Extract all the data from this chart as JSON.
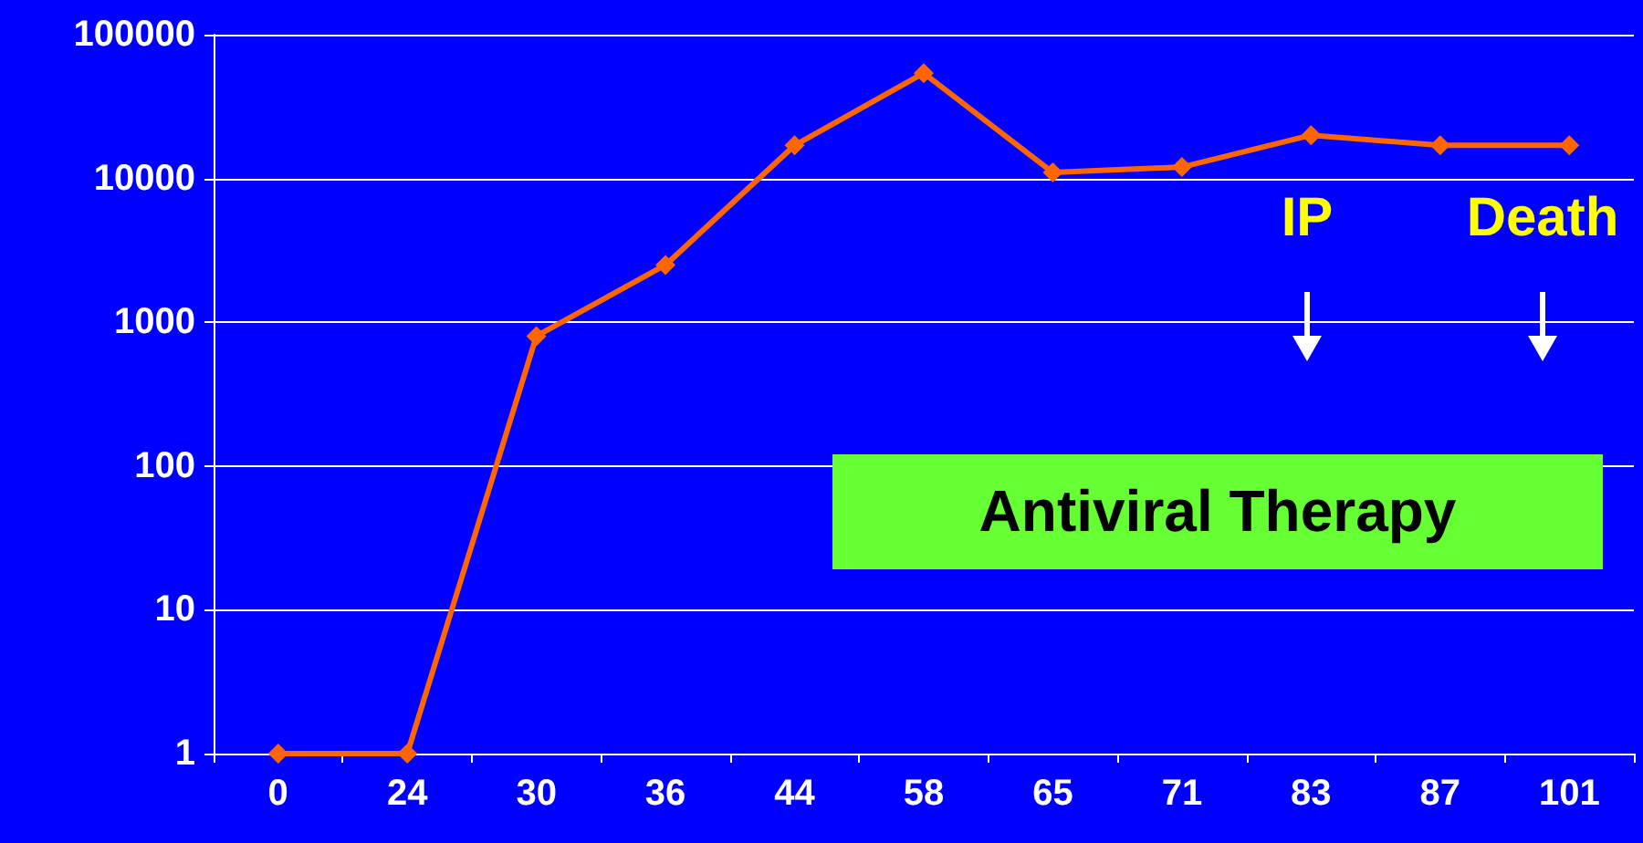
{
  "chart_data": {
    "type": "line",
    "categories": [
      "0",
      "24",
      "30",
      "36",
      "44",
      "58",
      "65",
      "71",
      "83",
      "87",
      "101"
    ],
    "series": [
      {
        "color": "#ff6600",
        "values": [
          1,
          1,
          800,
          2500,
          17000,
          54000,
          11000,
          12000,
          20000,
          17000,
          17000
        ]
      }
    ],
    "log": "y",
    "ylim": [
      1,
      100000
    ],
    "yticks": [
      1,
      10,
      100,
      {
        "value": 1000,
        "label": "1000"
      },
      {
        "value": 10000,
        "label": "10000"
      },
      {
        "value": 100000,
        "label": "100000"
      }
    ],
    "grid": "y",
    "marker": "diamond",
    "line_style": "solid",
    "annotations": [
      "IP",
      "Death",
      "Antiviral Therapy"
    ]
  }
}
